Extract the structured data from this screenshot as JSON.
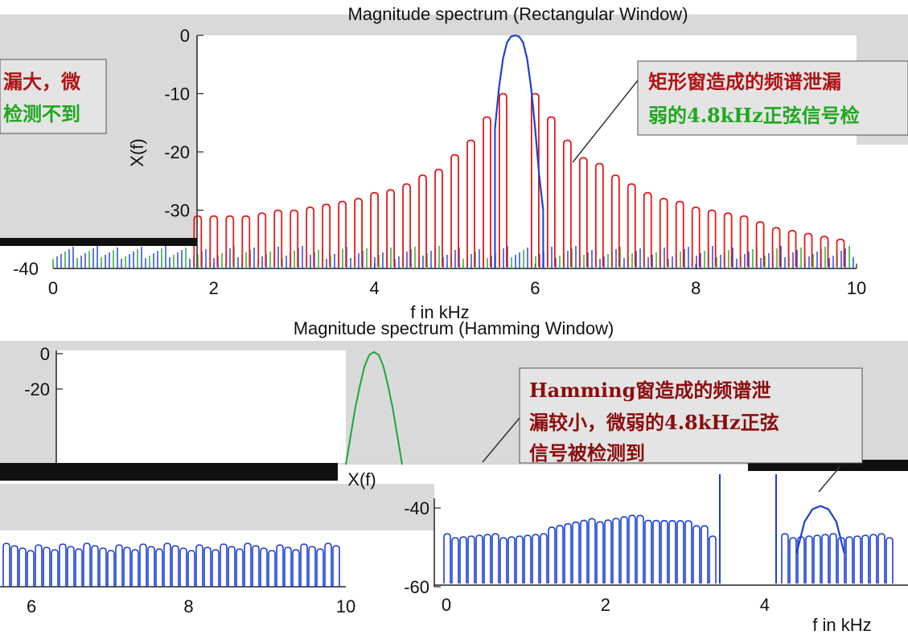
{
  "chart_data": [
    {
      "type": "line",
      "title": "Magnitude spectrum (Rectangular Window)",
      "xlabel": "f in kHz",
      "ylabel": "X(f)",
      "xlim": [
        0,
        10
      ],
      "ylim": [
        -40,
        0
      ],
      "x_ticks": [
        "0",
        "2",
        "4",
        "6",
        "8",
        "10"
      ],
      "y_ticks": [
        "0",
        "-10",
        "-20",
        "-30",
        "-40"
      ],
      "series": [
        {
          "type": "stem",
          "color": "#e41a1a",
          "x": [
            1.8,
            2.0,
            2.2,
            2.4,
            2.6,
            2.8,
            3.0,
            3.2,
            3.4,
            3.6,
            3.8,
            4.0,
            4.2,
            4.4,
            4.6,
            4.8,
            5.0,
            5.2,
            5.4,
            5.6,
            6.0,
            6.2,
            6.4,
            6.6,
            6.8,
            7.0,
            7.2,
            7.4,
            7.6,
            7.8,
            8.0,
            8.2,
            8.4,
            8.6,
            8.8,
            9.0,
            9.2,
            9.4,
            9.6,
            9.8
          ],
          "values": [
            -31,
            -31,
            -31,
            -31,
            -30.5,
            -30,
            -30,
            -29.5,
            -29,
            -28.5,
            -28,
            -27,
            -26.5,
            -25.5,
            -24,
            -23,
            -20.5,
            -18,
            -14,
            -10,
            -10,
            -14,
            -18,
            -21,
            -22,
            -24,
            -25.5,
            -27,
            -28,
            -28.5,
            -29.5,
            -30,
            -30.5,
            -31,
            -32,
            -33,
            -33.5,
            -34,
            -34.5,
            -35
          ]
        },
        {
          "type": "line",
          "color": "#1d3fd6",
          "x": [
            5.5,
            5.55,
            5.6,
            5.65,
            5.7,
            5.75,
            5.8,
            5.85,
            5.9,
            5.95,
            6.0,
            6.05,
            6.1
          ],
          "values": [
            -16,
            -9,
            -4,
            -1.2,
            -0.2,
            0,
            -0.2,
            -1.2,
            -4,
            -9,
            -16,
            -24,
            -30
          ]
        }
      ],
      "annotation": {
        "line1": "矩形窗造成的频谱泄漏",
        "line2": "弱的4.8kHz正弦信号检"
      },
      "left_note": {
        "line1": "漏大，微",
        "line2": "检测不到"
      }
    },
    {
      "type": "line",
      "title": "Magnitude spectrum (Hamming Window)",
      "xlabel": "f in kHz",
      "ylabel": "X(f)",
      "xlim": [
        0,
        10
      ],
      "ylim": [
        -60,
        0
      ],
      "x_ticks_left": [
        "6",
        "8",
        "10"
      ],
      "x_ticks_right": [
        "0",
        "2",
        "4"
      ],
      "y_ticks_left": [
        "0",
        "-20"
      ],
      "y_ticks_right": [
        "-40",
        "-60"
      ],
      "series": [
        {
          "type": "line",
          "color": "#1aa83a",
          "x": [
            5.2,
            5.3,
            5.4,
            5.5,
            5.6,
            5.7,
            5.8,
            5.9,
            6.0,
            6.1,
            6.2,
            6.3,
            6.4
          ],
          "values": [
            -40,
            -30,
            -20,
            -12,
            -5,
            -1,
            0,
            -1,
            -5,
            -12,
            -20,
            -30,
            -40
          ]
        },
        {
          "type": "line",
          "color": "#1d3fd6",
          "x": [
            4.4,
            4.5,
            4.6,
            4.7,
            4.8,
            4.9,
            5.0
          ],
          "values": [
            -55,
            -45,
            -41,
            -40,
            -41,
            -45,
            -55
          ]
        }
      ],
      "annotation": {
        "line1": "Hamming窗造成的频谱泄",
        "line2": "漏较小，微弱的4.8kHz正弦",
        "line3": "信号被检测到"
      }
    }
  ]
}
